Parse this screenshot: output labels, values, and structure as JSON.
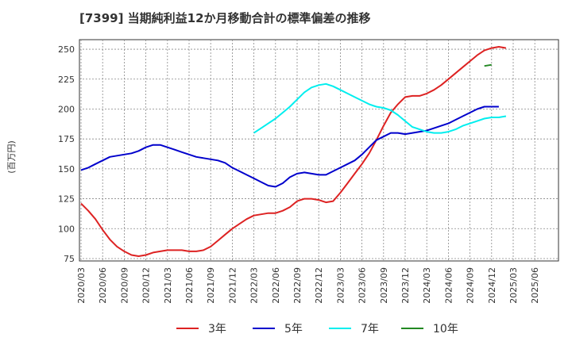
{
  "chart_data": {
    "type": "line",
    "title": "[7399]  当期純利益12か月移動合計の標準偏差の推移",
    "ylabel": "(百万円)",
    "xlabel": "",
    "ylim": [
      73,
      258
    ],
    "yticks": [
      75,
      100,
      125,
      150,
      175,
      200,
      225,
      250
    ],
    "x_ticks": [
      "2020/03",
      "2020/06",
      "2020/09",
      "2020/12",
      "2021/03",
      "2021/06",
      "2021/09",
      "2021/12",
      "2022/03",
      "2022/06",
      "2022/09",
      "2022/12",
      "2023/03",
      "2023/06",
      "2023/09",
      "2023/12",
      "2024/03",
      "2024/06",
      "2024/09",
      "2024/12",
      "2025/03",
      "2025/06"
    ],
    "grid": true,
    "series": [
      {
        "name": "3年",
        "color": "#dd2222",
        "start": 0,
        "values": [
          121,
          115,
          108,
          99,
          91,
          85,
          81,
          78,
          77,
          78,
          80,
          81,
          82,
          82,
          82,
          81,
          81,
          82,
          85,
          90,
          95,
          100,
          104,
          108,
          111,
          112,
          113,
          113,
          115,
          118,
          123,
          125,
          125,
          124,
          122,
          123,
          130,
          138,
          146,
          154,
          163,
          174,
          186,
          197,
          204,
          210,
          211,
          211,
          213,
          216,
          220,
          225,
          230,
          235,
          240,
          245,
          249,
          251,
          252,
          251
        ]
      },
      {
        "name": "5年",
        "color": "#0000cc",
        "start": 0,
        "values": [
          149,
          151,
          154,
          157,
          160,
          161,
          162,
          163,
          165,
          168,
          170,
          170,
          168,
          166,
          164,
          162,
          160,
          159,
          158,
          157,
          155,
          151,
          148,
          145,
          142,
          139,
          136,
          135,
          138,
          143,
          146,
          147,
          146,
          145,
          145,
          148,
          151,
          154,
          157,
          162,
          168,
          174,
          177,
          180,
          180,
          179,
          180,
          181,
          182,
          184,
          186,
          188,
          191,
          194,
          197,
          200,
          202,
          202,
          202
        ]
      },
      {
        "name": "7年",
        "color": "#00eeee",
        "start": 24,
        "values": [
          180,
          184,
          188,
          192,
          197,
          202,
          208,
          214,
          218,
          220,
          221,
          219,
          216,
          213,
          210,
          207,
          204,
          202,
          201,
          199,
          195,
          190,
          185,
          183,
          181,
          180,
          180,
          181,
          183,
          186,
          188,
          190,
          192,
          193,
          193,
          194
        ]
      },
      {
        "name": "10年",
        "color": "#228822",
        "start": 56,
        "values": [
          236,
          237
        ]
      }
    ]
  }
}
